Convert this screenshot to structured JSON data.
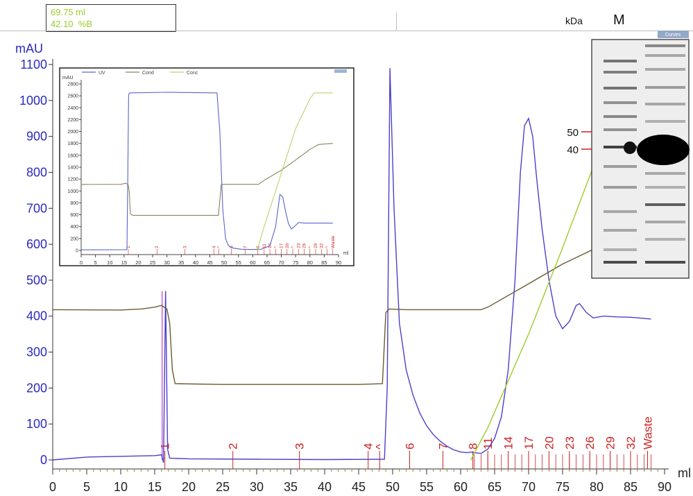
{
  "readout": {
    "volume": "69.75 ml",
    "percent_b": "42.10  %B"
  },
  "gel": {
    "kda_label": "kDa",
    "marker_label": "M",
    "curves_button": "Curves",
    "markers": [
      {
        "label": "50",
        "kda": 50
      },
      {
        "label": "40",
        "kda": 40
      }
    ]
  },
  "chart_data": [
    {
      "type": "line",
      "ylabel": "mAU",
      "xlabel": "ml",
      "xlim": [
        0,
        90
      ],
      "ylim": [
        0,
        1100
      ],
      "x_ticks": [
        0,
        5,
        10,
        15,
        20,
        25,
        30,
        35,
        40,
        45,
        50,
        55,
        60,
        65,
        70,
        75,
        80,
        85,
        90
      ],
      "y_ticks": [
        0,
        100,
        200,
        300,
        400,
        500,
        600,
        700,
        800,
        900,
        1000,
        1100
      ],
      "series": [
        {
          "color": "#4b3fc9",
          "points": [
            [
              0,
              0
            ],
            [
              5,
              8
            ],
            [
              10,
              10
            ],
            [
              15,
              12
            ],
            [
              16,
              14
            ],
            [
              16.3,
              -8
            ],
            [
              16.6,
              470
            ],
            [
              16.9,
              30
            ],
            [
              17.2,
              5
            ],
            [
              20,
              3
            ],
            [
              30,
              2
            ],
            [
              40,
              1
            ],
            [
              48.8,
              2
            ],
            [
              49.2,
              200
            ],
            [
              49.6,
              1090
            ],
            [
              50.2,
              700
            ],
            [
              51,
              380
            ],
            [
              52,
              250
            ],
            [
              53,
              180
            ],
            [
              54,
              130
            ],
            [
              55,
              95
            ],
            [
              56,
              70
            ],
            [
              57,
              52
            ],
            [
              58,
              38
            ],
            [
              59,
              28
            ],
            [
              60,
              22
            ],
            [
              61,
              20
            ],
            [
              61.5,
              22
            ],
            [
              62,
              20
            ],
            [
              63,
              18
            ],
            [
              64,
              30
            ],
            [
              65,
              60
            ],
            [
              66,
              120
            ],
            [
              67,
              250
            ],
            [
              68,
              500
            ],
            [
              68.8,
              800
            ],
            [
              69.4,
              930
            ],
            [
              70,
              950
            ],
            [
              70.6,
              900
            ],
            [
              71.2,
              780
            ],
            [
              72,
              640
            ],
            [
              73,
              500
            ],
            [
              74,
              400
            ],
            [
              75,
              365
            ],
            [
              76,
              385
            ],
            [
              77,
              430
            ],
            [
              77.5,
              435
            ],
            [
              78.5,
              410
            ],
            [
              79.5,
              395
            ],
            [
              81,
              400
            ],
            [
              83,
              398
            ],
            [
              85,
              397
            ],
            [
              88,
              392
            ]
          ]
        },
        {
          "color": "#6b5a2e",
          "points": [
            [
              0,
              418
            ],
            [
              10,
              417
            ],
            [
              13,
              420
            ],
            [
              15,
              425
            ],
            [
              16,
              430
            ],
            [
              16.8,
              420
            ],
            [
              17.2,
              380
            ],
            [
              17.6,
              250
            ],
            [
              18,
              212
            ],
            [
              25,
              210
            ],
            [
              35,
              210
            ],
            [
              45,
              210
            ],
            [
              48.5,
              212
            ],
            [
              49,
              410
            ],
            [
              49.5,
              420
            ],
            [
              52,
              418
            ],
            [
              60,
              418
            ],
            [
              63,
              418
            ],
            [
              64,
              425
            ],
            [
              70,
              490
            ],
            [
              75,
              545
            ],
            [
              80,
              590
            ],
            [
              85,
              630
            ],
            [
              88,
              650
            ]
          ]
        },
        {
          "color": "#9ccc2a",
          "points": [
            [
              61.5,
              0
            ],
            [
              64,
              90
            ],
            [
              70,
              350
            ],
            [
              75,
              590
            ],
            [
              80,
              840
            ],
            [
              82,
              950
            ],
            [
              83,
              1000
            ],
            [
              83.5,
              1020
            ]
          ]
        }
      ],
      "fractions": [
        "1",
        "2",
        "3",
        "4",
        "^",
        "6",
        "7",
        "8",
        "11",
        "14",
        "17",
        "20",
        "23",
        "26",
        "29",
        "32",
        "Waste"
      ]
    },
    {
      "type": "line",
      "ylabel": "mAU",
      "xlabel": "ml",
      "xlim": [
        0,
        90
      ],
      "ylim": [
        0,
        2800
      ],
      "x_ticks": [
        0,
        5,
        10,
        15,
        20,
        25,
        30,
        35,
        40,
        45,
        50,
        55,
        60,
        65,
        70,
        75,
        80,
        85,
        90
      ],
      "y_ticks": [
        0,
        200,
        400,
        600,
        800,
        1000,
        1200,
        1400,
        1600,
        1800,
        2000,
        2200,
        2400,
        2600,
        2800
      ],
      "legend": [
        "UV",
        "Cond",
        "Conc"
      ],
      "legend_colors": [
        "#5a63c9",
        "#8a8262",
        "#b8d36a"
      ],
      "series": [
        {
          "name": "UV",
          "color": "#5a63c9",
          "points": [
            [
              0,
              10
            ],
            [
              15,
              12
            ],
            [
              16,
              15
            ],
            [
              16.3,
              1200
            ],
            [
              16.6,
              2620
            ],
            [
              17,
              2650
            ],
            [
              30,
              2660
            ],
            [
              47.5,
              2650
            ],
            [
              48.5,
              2000
            ],
            [
              49.5,
              700
            ],
            [
              50.5,
              200
            ],
            [
              51.5,
              80
            ],
            [
              53,
              40
            ],
            [
              56,
              20
            ],
            [
              60,
              15
            ],
            [
              63,
              20
            ],
            [
              66,
              80
            ],
            [
              68,
              400
            ],
            [
              69.5,
              940
            ],
            [
              70.5,
              900
            ],
            [
              71.5,
              650
            ],
            [
              72.5,
              450
            ],
            [
              73.5,
              360
            ],
            [
              75,
              420
            ],
            [
              76,
              470
            ],
            [
              78,
              460
            ],
            [
              80,
              460
            ],
            [
              85,
              460
            ],
            [
              88,
              458
            ]
          ]
        },
        {
          "name": "Cond",
          "color": "#8a8262",
          "points": [
            [
              0,
              1110
            ],
            [
              14,
              1112
            ],
            [
              15.5,
              1130
            ],
            [
              16.4,
              1110
            ],
            [
              16.8,
              1000
            ],
            [
              17.2,
              620
            ],
            [
              18,
              590
            ],
            [
              25,
              590
            ],
            [
              35,
              590
            ],
            [
              48,
              590
            ],
            [
              49,
              1110
            ],
            [
              50,
              1112
            ],
            [
              62,
              1112
            ],
            [
              64,
              1180
            ],
            [
              70,
              1350
            ],
            [
              75,
              1520
            ],
            [
              80,
              1700
            ],
            [
              83,
              1780
            ],
            [
              85,
              1790
            ],
            [
              88,
              1800
            ]
          ]
        },
        {
          "name": "Conc",
          "color": "#b8d36a",
          "points": [
            [
              61.5,
              0
            ],
            [
              64,
              400
            ],
            [
              70,
              1300
            ],
            [
              75,
              2050
            ],
            [
              80,
              2550
            ],
            [
              81.5,
              2650
            ],
            [
              88,
              2650
            ]
          ]
        }
      ],
      "fractions": [
        "1",
        "2",
        "3",
        "4",
        "^",
        "6",
        "7",
        "8",
        "11",
        "14",
        "17",
        "20",
        "23",
        "26",
        "29",
        "32",
        "Waste"
      ]
    }
  ]
}
